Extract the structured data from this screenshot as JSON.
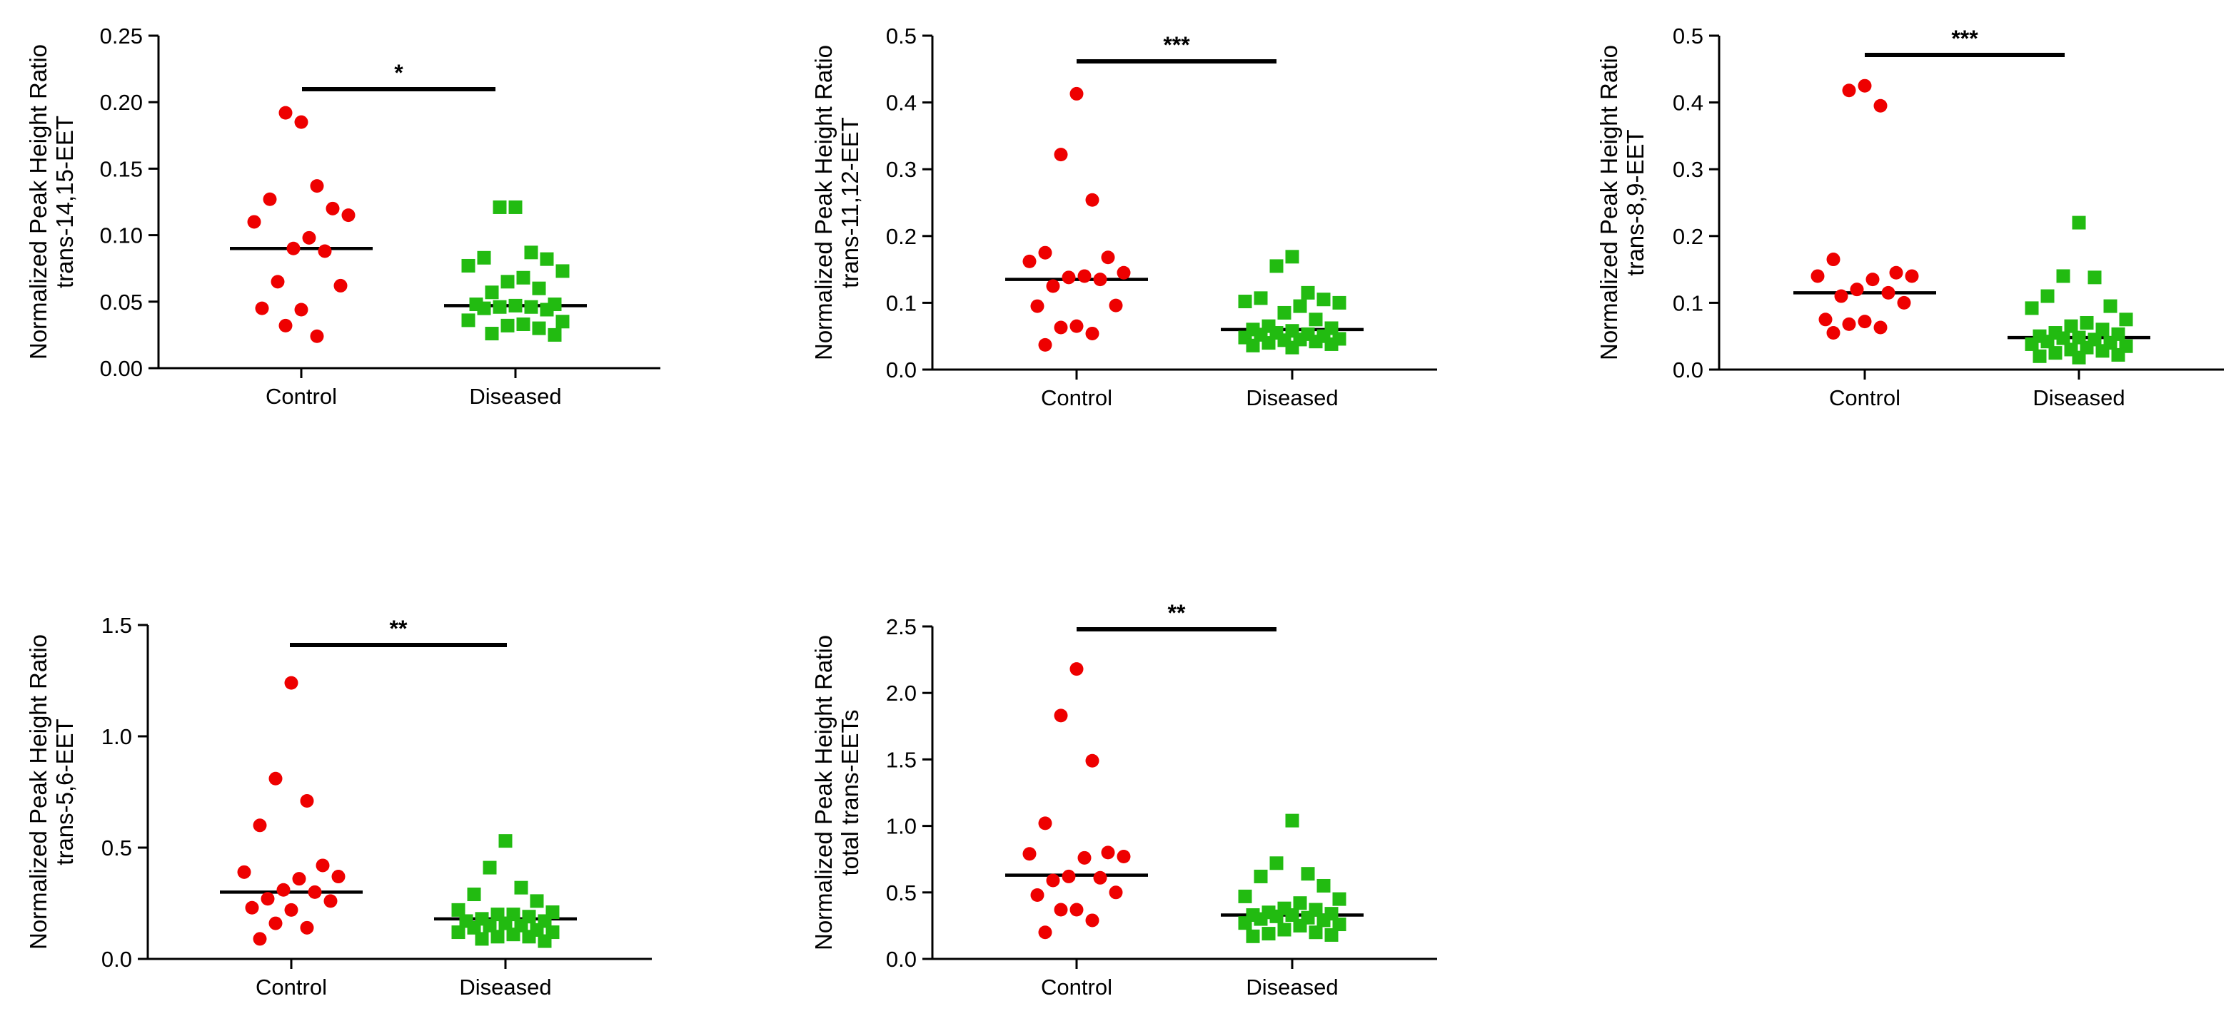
{
  "colors": {
    "control": "#ee0000",
    "diseased": "#22bb11",
    "axis": "#000000"
  },
  "chart_data": [
    {
      "type": "scatter",
      "ylabel_line1": "Normalized Peak Height Ratio",
      "ylabel_line2": "trans-14,15-EET",
      "ylim": [
        0,
        0.25
      ],
      "yticks": [
        0,
        0.05,
        0.1,
        0.15,
        0.2,
        0.25
      ],
      "ytick_labels": [
        "0.00",
        "0.05",
        "0.10",
        "0.15",
        "0.20",
        "0.25"
      ],
      "categories": [
        "Control",
        "Diseased"
      ],
      "significance": "*",
      "series": [
        {
          "name": "Control",
          "marker": "circle",
          "median": 0.09,
          "values": [
            0.185,
            0.192,
            0.137,
            0.127,
            0.12,
            0.11,
            0.115,
            0.098,
            0.09,
            0.088,
            0.065,
            0.062,
            0.045,
            0.044,
            0.032,
            0.024
          ]
        },
        {
          "name": "Diseased",
          "marker": "square",
          "median": 0.047,
          "values": [
            0.121,
            0.121,
            0.087,
            0.083,
            0.082,
            0.077,
            0.073,
            0.068,
            0.065,
            0.06,
            0.057,
            0.048,
            0.048,
            0.047,
            0.046,
            0.046,
            0.045,
            0.044,
            0.036,
            0.035,
            0.033,
            0.032,
            0.03,
            0.026,
            0.025
          ]
        }
      ]
    },
    {
      "type": "scatter",
      "ylabel_line1": "Normalized Peak Height Ratio",
      "ylabel_line2": "trans-11,12-EET",
      "ylim": [
        0,
        0.5
      ],
      "yticks": [
        0,
        0.1,
        0.2,
        0.3,
        0.4,
        0.5
      ],
      "ytick_labels": [
        "0.0",
        "0.1",
        "0.2",
        "0.3",
        "0.4",
        "0.5"
      ],
      "categories": [
        "Control",
        "Diseased"
      ],
      "significance": "***",
      "series": [
        {
          "name": "Control",
          "marker": "circle",
          "median": 0.135,
          "values": [
            0.413,
            0.322,
            0.254,
            0.175,
            0.168,
            0.162,
            0.145,
            0.14,
            0.138,
            0.135,
            0.125,
            0.096,
            0.095,
            0.065,
            0.063,
            0.054,
            0.037
          ]
        },
        {
          "name": "Diseased",
          "marker": "square",
          "median": 0.06,
          "values": [
            0.169,
            0.155,
            0.115,
            0.107,
            0.105,
            0.102,
            0.1,
            0.095,
            0.085,
            0.075,
            0.065,
            0.062,
            0.06,
            0.058,
            0.055,
            0.053,
            0.052,
            0.05,
            0.048,
            0.046,
            0.045,
            0.044,
            0.042,
            0.04,
            0.038,
            0.036,
            0.033
          ]
        }
      ]
    },
    {
      "type": "scatter",
      "ylabel_line1": "Normalized Peak Height Ratio",
      "ylabel_line2": "trans-8,9-EET",
      "ylim": [
        0,
        0.5
      ],
      "yticks": [
        0,
        0.1,
        0.2,
        0.3,
        0.4,
        0.5
      ],
      "ytick_labels": [
        "0.0",
        "0.1",
        "0.2",
        "0.3",
        "0.4",
        "0.5"
      ],
      "categories": [
        "Control",
        "Diseased"
      ],
      "significance": "***",
      "series": [
        {
          "name": "Control",
          "marker": "circle",
          "median": 0.115,
          "values": [
            0.425,
            0.418,
            0.395,
            0.165,
            0.145,
            0.14,
            0.14,
            0.135,
            0.12,
            0.115,
            0.11,
            0.1,
            0.075,
            0.072,
            0.068,
            0.063,
            0.055
          ]
        },
        {
          "name": "Diseased",
          "marker": "square",
          "median": 0.048,
          "values": [
            0.22,
            0.14,
            0.138,
            0.11,
            0.095,
            0.092,
            0.075,
            0.07,
            0.065,
            0.06,
            0.055,
            0.053,
            0.05,
            0.048,
            0.047,
            0.045,
            0.042,
            0.04,
            0.038,
            0.035,
            0.033,
            0.03,
            0.028,
            0.025,
            0.022,
            0.02,
            0.018
          ]
        }
      ]
    },
    {
      "type": "scatter",
      "ylabel_line1": "Normalized Peak Height Ratio",
      "ylabel_line2": "trans-5,6-EET",
      "ylim": [
        0,
        1.5
      ],
      "yticks": [
        0,
        0.5,
        1.0,
        1.5
      ],
      "ytick_labels": [
        "0.0",
        "0.5",
        "1.0",
        "1.5"
      ],
      "categories": [
        "Control",
        "Diseased"
      ],
      "significance": "**",
      "series": [
        {
          "name": "Control",
          "marker": "circle",
          "median": 0.3,
          "values": [
            1.24,
            0.81,
            0.71,
            0.6,
            0.42,
            0.39,
            0.37,
            0.36,
            0.31,
            0.3,
            0.27,
            0.26,
            0.23,
            0.22,
            0.16,
            0.14,
            0.09
          ]
        },
        {
          "name": "Diseased",
          "marker": "square",
          "median": 0.18,
          "values": [
            0.53,
            0.41,
            0.32,
            0.29,
            0.26,
            0.22,
            0.21,
            0.2,
            0.2,
            0.19,
            0.18,
            0.17,
            0.17,
            0.16,
            0.15,
            0.15,
            0.14,
            0.13,
            0.12,
            0.12,
            0.11,
            0.1,
            0.1,
            0.09,
            0.08
          ]
        }
      ]
    },
    {
      "type": "scatter",
      "ylabel_line1": "Normalized Peak Height Ratio",
      "ylabel_line2": "total trans-EETs",
      "ylim": [
        0,
        2.5
      ],
      "yticks": [
        0,
        0.5,
        1.0,
        1.5,
        2.0,
        2.5
      ],
      "ytick_labels": [
        "0.0",
        "0.5",
        "1.0",
        "1.5",
        "2.0",
        "2.5"
      ],
      "categories": [
        "Control",
        "Diseased"
      ],
      "significance": "**",
      "series": [
        {
          "name": "Control",
          "marker": "circle",
          "median": 0.63,
          "values": [
            2.18,
            1.83,
            1.49,
            1.02,
            0.8,
            0.79,
            0.77,
            0.76,
            0.62,
            0.61,
            0.59,
            0.5,
            0.48,
            0.37,
            0.37,
            0.29,
            0.2
          ]
        },
        {
          "name": "Diseased",
          "marker": "square",
          "median": 0.33,
          "values": [
            1.04,
            0.72,
            0.64,
            0.62,
            0.55,
            0.47,
            0.45,
            0.42,
            0.38,
            0.37,
            0.35,
            0.34,
            0.33,
            0.33,
            0.32,
            0.31,
            0.3,
            0.29,
            0.27,
            0.26,
            0.25,
            0.22,
            0.2,
            0.19,
            0.18,
            0.17
          ]
        }
      ]
    }
  ]
}
